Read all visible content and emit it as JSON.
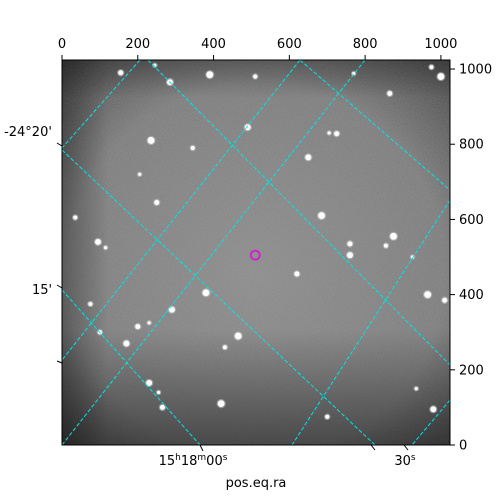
{
  "figure": {
    "xlabel": "pos.eq.ra",
    "pixel_axis_top": {
      "ticks": [
        "0",
        "200",
        "400",
        "600",
        "800",
        "1000"
      ],
      "values": [
        0,
        200,
        400,
        600,
        800,
        1000
      ],
      "range": [
        0,
        1024
      ]
    },
    "pixel_axis_right": {
      "ticks": [
        "0",
        "200",
        "400",
        "600",
        "800",
        "1000"
      ],
      "values": [
        0,
        200,
        400,
        600,
        800,
        1000
      ],
      "range": [
        0,
        1024
      ]
    },
    "world_axis_left": {
      "ticks": [
        "-24°20'",
        "15'"
      ]
    },
    "world_axis_bottom": {
      "ticks": [
        {
          "h": "15",
          "hs": "h",
          "m": "18",
          "ms": "m",
          "s": "00",
          "ss": "s"
        },
        {
          "s": "30",
          "ss": "s"
        }
      ]
    },
    "grid_color": "#00e5e5",
    "marker_color": "#d020d0"
  },
  "chart_data": {
    "type": "image",
    "xlabel": "pos.eq.ra",
    "xlim": [
      0,
      1024
    ],
    "ylim": [
      0,
      1024
    ],
    "x_ticks_top": [
      0,
      200,
      400,
      600,
      800,
      1000
    ],
    "y_ticks_right": [
      0,
      200,
      400,
      600,
      800,
      1000
    ],
    "left_tick_labels": [
      "-24°20'",
      "15'"
    ],
    "bottom_tick_labels": [
      "15h18m00s",
      "30s"
    ],
    "grid": true,
    "marked_source": {
      "x": 510,
      "y": 505
    },
    "stars": [
      {
        "x": 245,
        "y": 1010
      },
      {
        "x": 155,
        "y": 990
      },
      {
        "x": 390,
        "y": 985
      },
      {
        "x": 510,
        "y": 980
      },
      {
        "x": 285,
        "y": 965
      },
      {
        "x": 770,
        "y": 988
      },
      {
        "x": 865,
        "y": 935
      },
      {
        "x": 1000,
        "y": 980
      },
      {
        "x": 975,
        "y": 1005
      },
      {
        "x": 490,
        "y": 845
      },
      {
        "x": 705,
        "y": 830
      },
      {
        "x": 725,
        "y": 828
      },
      {
        "x": 235,
        "y": 810
      },
      {
        "x": 345,
        "y": 790
      },
      {
        "x": 650,
        "y": 765
      },
      {
        "x": 205,
        "y": 720
      },
      {
        "x": 250,
        "y": 645
      },
      {
        "x": 685,
        "y": 610
      },
      {
        "x": 35,
        "y": 605
      },
      {
        "x": 95,
        "y": 540
      },
      {
        "x": 115,
        "y": 525
      },
      {
        "x": 760,
        "y": 535
      },
      {
        "x": 875,
        "y": 555
      },
      {
        "x": 855,
        "y": 530
      },
      {
        "x": 760,
        "y": 505
      },
      {
        "x": 925,
        "y": 500
      },
      {
        "x": 620,
        "y": 455
      },
      {
        "x": 380,
        "y": 405
      },
      {
        "x": 75,
        "y": 375
      },
      {
        "x": 290,
        "y": 360
      },
      {
        "x": 230,
        "y": 325
      },
      {
        "x": 200,
        "y": 315
      },
      {
        "x": 465,
        "y": 290
      },
      {
        "x": 100,
        "y": 300
      },
      {
        "x": 230,
        "y": 165
      },
      {
        "x": 255,
        "y": 140
      },
      {
        "x": 265,
        "y": 100
      },
      {
        "x": 420,
        "y": 110
      },
      {
        "x": 700,
        "y": 75
      },
      {
        "x": 980,
        "y": 95
      },
      {
        "x": 935,
        "y": 150
      },
      {
        "x": 1010,
        "y": 385
      },
      {
        "x": 965,
        "y": 400
      },
      {
        "x": 430,
        "y": 260
      },
      {
        "x": 170,
        "y": 270
      }
    ]
  }
}
